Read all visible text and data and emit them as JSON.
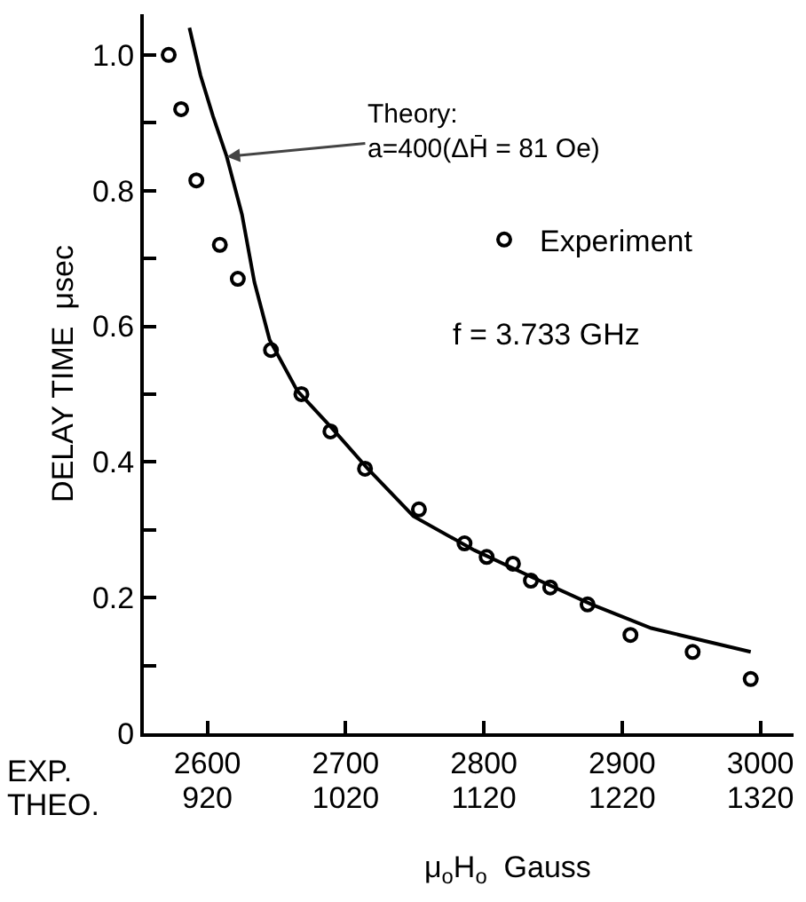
{
  "chart_data": {
    "type": "scatter",
    "ylabel": "DELAY TIME  μsec",
    "xlabel": "μ$_{o}$H$_{o}$  Gauss",
    "series": [
      {
        "name": "Experiment",
        "color": "#000000",
        "marker": "circle",
        "x": [
          2572,
          2581,
          2592,
          2609,
          2622,
          2646,
          2668,
          2689,
          2714,
          2753,
          2786,
          2802,
          2821,
          2834,
          2848,
          2875,
          2906,
          2951,
          2993
        ],
        "values": [
          1.0,
          0.92,
          0.815,
          0.72,
          0.67,
          0.565,
          0.5,
          0.445,
          0.39,
          0.33,
          0.28,
          0.26,
          0.25,
          0.225,
          0.215,
          0.19,
          0.145,
          0.12,
          0.08
        ]
      },
      {
        "type": "line",
        "color": "#000000",
        "line_style": "solid",
        "x": [
          2587,
          2595,
          2604,
          2614,
          2625,
          2634,
          2645,
          2665,
          2690,
          2716,
          2749,
          2793,
          2835,
          2878,
          2921,
          2993
        ],
        "values": [
          1.04,
          0.97,
          0.91,
          0.85,
          0.765,
          0.665,
          0.58,
          0.505,
          0.45,
          0.39,
          0.32,
          0.27,
          0.23,
          0.19,
          0.155,
          0.12
        ]
      }
    ],
    "annotations": [
      {
        "text": "Theory:\na=400(ΔH̄ = 81 Oe)",
        "x": 2614,
        "y": 0.85
      },
      "f = 3.733 GHz",
      "EXP.",
      "THEO."
    ],
    "xlim": [
      2554,
      3024
    ],
    "xticks": [
      2600,
      2700,
      2800,
      2900,
      3000
    ],
    "x2lim": [
      874,
      1344
    ],
    "x2ticks": [
      920,
      1020,
      1120,
      1220,
      1320
    ],
    "ylim": [
      0,
      1.06
    ],
    "yticks": [
      0,
      {
        "value": 0.1,
        "label": null
      },
      0.2,
      {
        "value": 0.3,
        "label": null
      },
      0.4,
      {
        "value": 0.5,
        "label": null
      },
      0.6,
      {
        "value": 0.7,
        "label": null
      },
      0.8,
      {
        "value": 0.9,
        "label": null
      },
      {
        "value": 1,
        "label": "1.0"
      }
    ],
    "grid": false,
    "legend": "top right"
  }
}
